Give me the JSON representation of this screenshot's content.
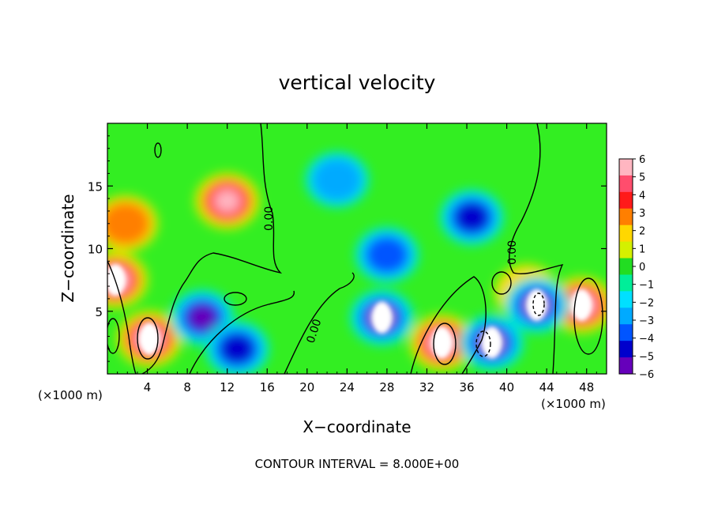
{
  "chart_data": {
    "type": "heatmap",
    "title": "vertical velocity",
    "xlabel": "X−coordinate",
    "ylabel": "Z−coordinate",
    "x_unit_left": "(×1000 m)",
    "x_unit_right": "(×1000 m)",
    "footer": "CONTOUR INTERVAL = 8.000E+00",
    "contour_label": "0.00",
    "xlim": [
      0,
      50
    ],
    "ylim": [
      0,
      20
    ],
    "x_ticks": [
      4,
      8,
      12,
      16,
      20,
      24,
      28,
      32,
      36,
      40,
      44,
      48
    ],
    "y_ticks": [
      5,
      10,
      15
    ],
    "colorbar": {
      "min": -6,
      "max": 6,
      "labels": [
        "6",
        "5",
        "4",
        "3",
        "2",
        "1",
        "0",
        "−1",
        "−2",
        "−3",
        "−4",
        "−5",
        "−6"
      ],
      "colors": [
        "#ffb6c1",
        "#ff4d6d",
        "#ff1a1a",
        "#ff7f00",
        "#ffd700",
        "#d4f000",
        "#22dd22",
        "#00ee99",
        "#00e0ff",
        "#00aaff",
        "#0055ff",
        "#0000cc",
        "#6600bb"
      ]
    },
    "features": [
      {
        "x": 12,
        "z": 13.8,
        "w": 6,
        "note": "positive"
      },
      {
        "x": 1.8,
        "z": 12,
        "w": 3,
        "note": "positive"
      },
      {
        "x": 0.8,
        "z": 7.5,
        "w": 7,
        "note": "saturated positive"
      },
      {
        "x": 4.2,
        "z": 2.8,
        "w": 7,
        "note": "saturated positive"
      },
      {
        "x": 33.5,
        "z": 2.5,
        "w": 7,
        "note": "saturated positive"
      },
      {
        "x": 47.5,
        "z": 5.5,
        "w": 7,
        "note": "saturated positive"
      },
      {
        "x": 42,
        "z": 6.5,
        "w": 1.5,
        "note": "positive"
      },
      {
        "x": 23,
        "z": 15.5,
        "w": -3,
        "note": "negative"
      },
      {
        "x": 36.5,
        "z": 12.5,
        "w": -5,
        "note": "negative"
      },
      {
        "x": 28,
        "z": 9.5,
        "w": -4,
        "note": "negative"
      },
      {
        "x": 27.5,
        "z": 4.5,
        "w": -7,
        "note": "saturated negative"
      },
      {
        "x": 38.5,
        "z": 2.5,
        "w": -7,
        "note": "saturated negative"
      },
      {
        "x": 43,
        "z": 5.5,
        "w": -7,
        "note": "saturated negative"
      },
      {
        "x": 9.5,
        "z": 4.5,
        "w": -6,
        "note": "negative"
      },
      {
        "x": 13,
        "z": 2,
        "w": -5,
        "note": "negative"
      }
    ]
  }
}
